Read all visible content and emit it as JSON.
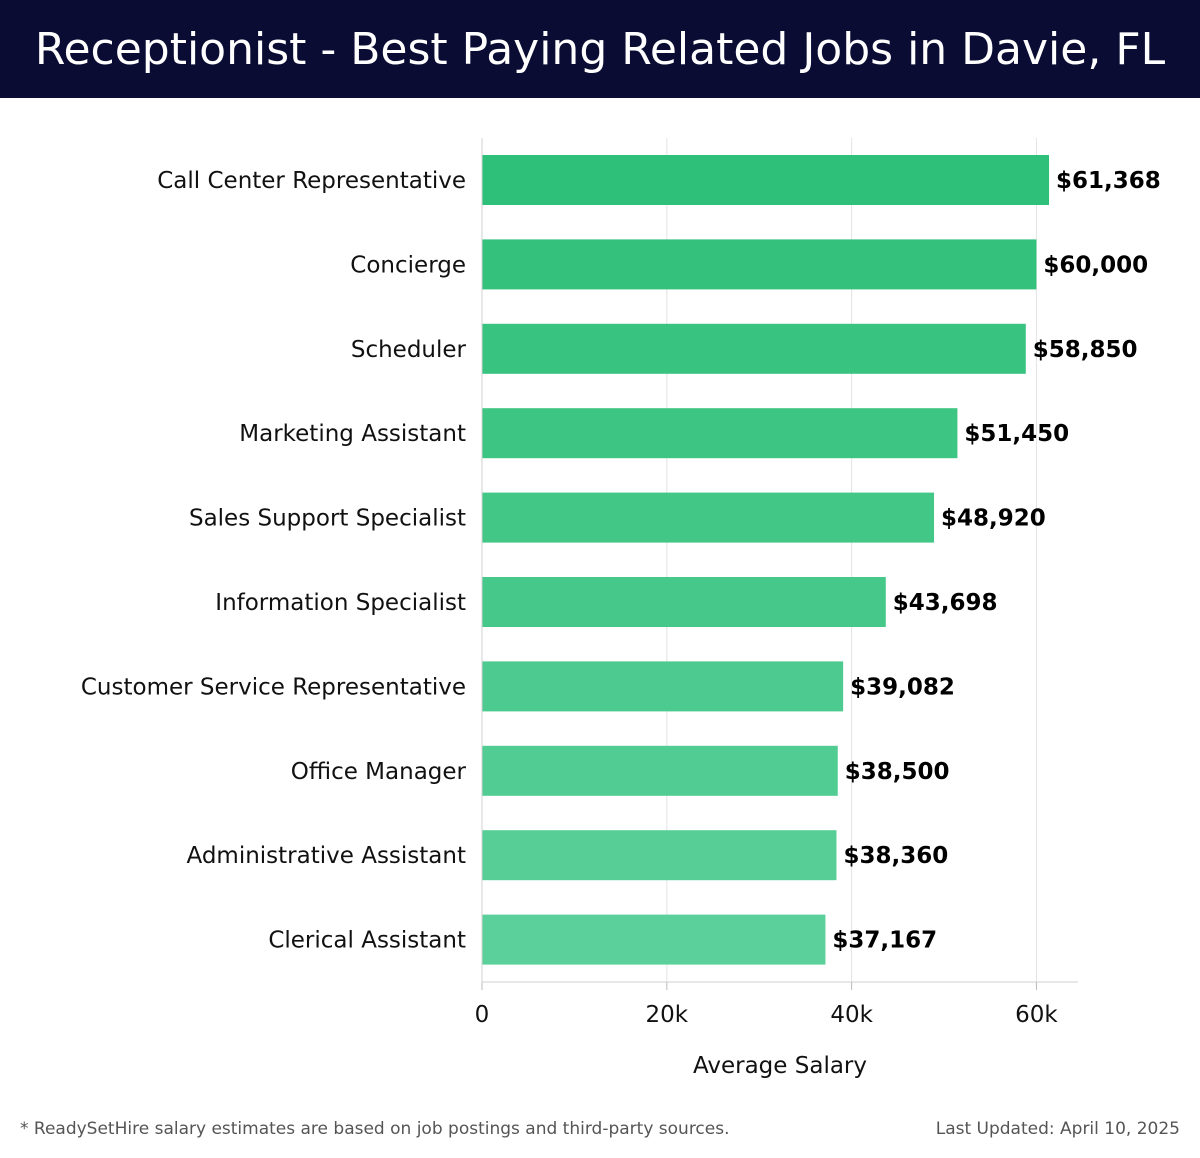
{
  "header": {
    "title": "Receptionist - Best Paying Related Jobs in Davie, FL"
  },
  "chart_data": {
    "type": "bar",
    "orientation": "horizontal",
    "categories": [
      "Call Center Representative",
      "Concierge",
      "Scheduler",
      "Marketing Assistant",
      "Sales Support Specialist",
      "Information Specialist",
      "Customer Service Representative",
      "Office Manager",
      "Administrative Assistant",
      "Clerical Assistant"
    ],
    "values": [
      61368,
      60000,
      58850,
      51450,
      48920,
      43698,
      39082,
      38500,
      38360,
      37167
    ],
    "value_labels": [
      "$61,368",
      "$60,000",
      "$58,850",
      "$51,450",
      "$48,920",
      "$43,698",
      "$39,082",
      "$38,500",
      "$38,360",
      "$37,167"
    ],
    "xlabel": "Average Salary",
    "ylabel": "",
    "xlim": [
      0,
      64500
    ],
    "ticks": [
      0,
      20000,
      40000,
      60000
    ],
    "tick_labels": [
      "0",
      "20k",
      "40k",
      "60k"
    ],
    "grid": true,
    "colors": {
      "bar_dark": "#2ebf78",
      "bar_light": "#5bd09a",
      "gridline": "#e3e3e3"
    }
  },
  "footer": {
    "note": "* ReadySetHire salary estimates are based on job postings and third-party sources.",
    "updated": "Last Updated: April 10, 2025"
  }
}
